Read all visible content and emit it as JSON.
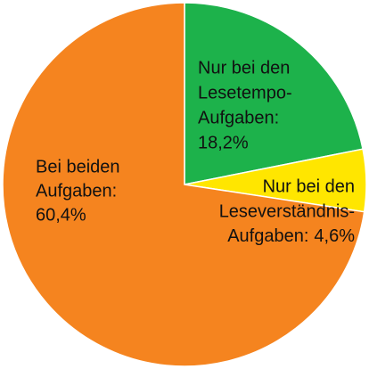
{
  "chart_data": {
    "type": "pie",
    "categories": [
      [
        "Nur bei den",
        "Lesetempo-",
        "Aufgaben:"
      ],
      [
        "Nur bei den",
        "Leseverständnis-",
        "Aufgaben:"
      ],
      [
        "Bei beiden",
        "Aufgaben:"
      ]
    ],
    "values": [
      18.2,
      4.6,
      60.4
    ],
    "value_labels": [
      "18,2%",
      "4,6%",
      "60,4%"
    ],
    "colors": [
      "#1db24b",
      "#ffe600",
      "#f5841f"
    ]
  }
}
